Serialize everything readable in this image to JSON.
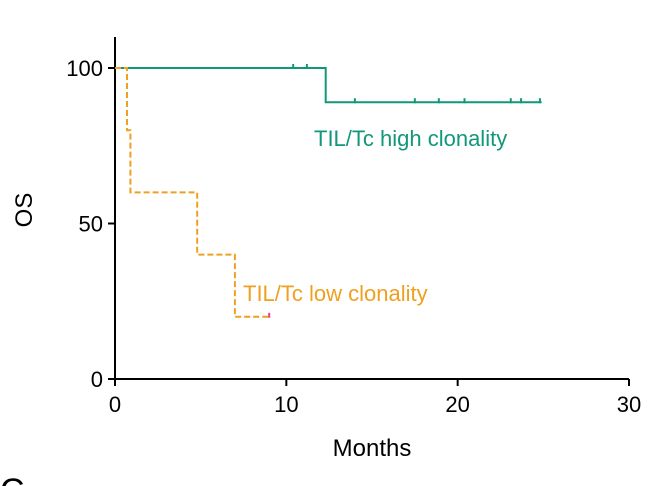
{
  "chart_data": {
    "type": "line",
    "subtype": "kaplan-meier",
    "xlabel": "Months",
    "ylabel": "OS",
    "xlim": [
      0,
      30
    ],
    "ylim": [
      0,
      110
    ],
    "xticks": [
      0,
      10,
      20,
      30
    ],
    "yticks": [
      0,
      50,
      100
    ],
    "grid": false,
    "legend": "inline-labels",
    "panel_label": "C",
    "series": [
      {
        "name": "TIL/Tc high clonality",
        "color": "#11977a",
        "line_style": "solid",
        "steps": [
          {
            "x": 0,
            "y": 100
          },
          {
            "x": 12.3,
            "y": 100
          },
          {
            "x": 12.3,
            "y": 89
          },
          {
            "x": 24.9,
            "y": 89
          }
        ],
        "censor_marks": [
          {
            "x": 10.4,
            "y": 100
          },
          {
            "x": 11.2,
            "y": 100
          },
          {
            "x": 14.0,
            "y": 89
          },
          {
            "x": 17.5,
            "y": 89
          },
          {
            "x": 18.9,
            "y": 89
          },
          {
            "x": 20.4,
            "y": 89
          },
          {
            "x": 23.1,
            "y": 89
          },
          {
            "x": 23.7,
            "y": 89
          },
          {
            "x": 24.8,
            "y": 89
          }
        ]
      },
      {
        "name": "TIL/Tc low clonality",
        "color": "#f0a020",
        "line_style": "dashed",
        "steps": [
          {
            "x": 0,
            "y": 100
          },
          {
            "x": 0.7,
            "y": 100
          },
          {
            "x": 0.7,
            "y": 80
          },
          {
            "x": 0.9,
            "y": 80
          },
          {
            "x": 0.9,
            "y": 60
          },
          {
            "x": 4.8,
            "y": 60
          },
          {
            "x": 4.8,
            "y": 40
          },
          {
            "x": 7.0,
            "y": 40
          },
          {
            "x": 7.0,
            "y": 20
          },
          {
            "x": 9.0,
            "y": 20
          }
        ],
        "censor_marks": [
          {
            "x": 9.0,
            "y": 20,
            "color": "#e0409a"
          }
        ]
      }
    ]
  }
}
